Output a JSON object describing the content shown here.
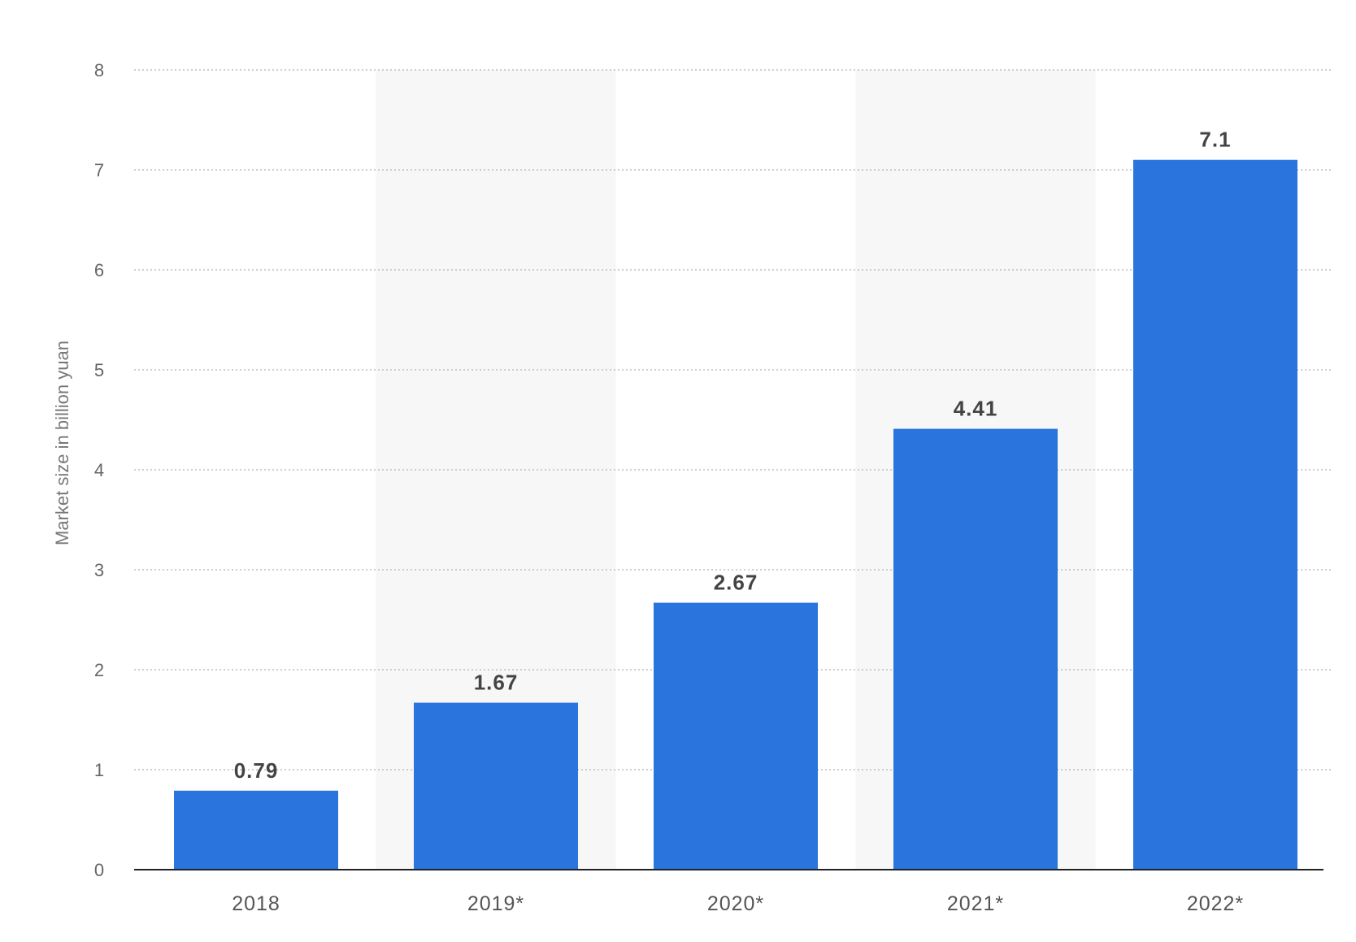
{
  "chart_data": {
    "type": "bar",
    "categories": [
      "2018",
      "2019*",
      "2020*",
      "2021*",
      "2022*"
    ],
    "values": [
      0.79,
      1.67,
      2.67,
      4.41,
      7.1
    ],
    "value_labels": [
      "0.79",
      "1.67",
      "2.67",
      "4.41",
      "7.1"
    ],
    "title": "",
    "xlabel": "",
    "ylabel": "Market size in billion yuan",
    "ylim": [
      0,
      8
    ],
    "yticks": [
      0,
      1,
      2,
      3,
      4,
      5,
      6,
      7,
      8
    ],
    "grid": true,
    "grid_style": "dotted",
    "alternating_column_shading": true,
    "colors": {
      "bar": "#2a74dd",
      "grid": "#bdbdbd",
      "axis": "#222222",
      "shade": "#f7f7f7"
    }
  }
}
